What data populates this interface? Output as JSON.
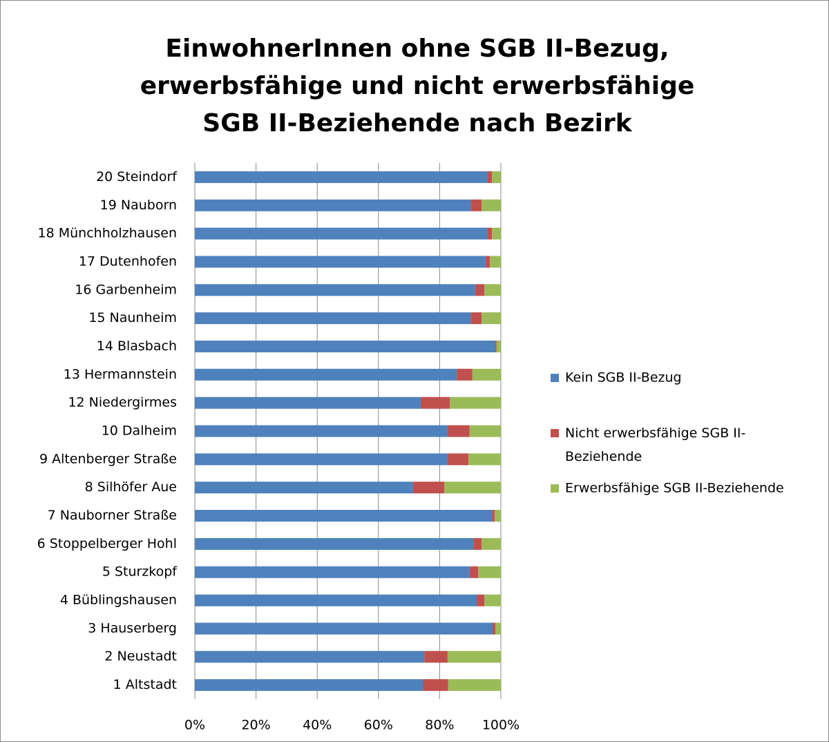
{
  "chart_data": {
    "type": "stacked_barh",
    "title": [
      "EinwohnerInnen ohne SGB II-Bezug,",
      "erwerbsfähige und nicht erwerbsfähige",
      "SGB II-Beziehende nach Bezirk"
    ],
    "categories": [
      "1 Altstadt",
      "2 Neustadt",
      "3 Hauserberg",
      "4 Büblingshausen",
      "5 Sturzkopf",
      "6 Stoppelberger Hohl",
      "7 Nauborner Straße",
      "8 Silhöfer Aue",
      "9 Altenberger Straße",
      "10 Dalheim",
      "12 Niedergirmes",
      "13 Hermannstein",
      "14 Blasbach",
      "15 Naunheim",
      "16 Garbenheim",
      "17 Dutenhofen",
      "18 Münchholzhausen",
      "19 Nauborn",
      "20 Steindorf"
    ],
    "series": [
      {
        "name": "Kein SGB II-Bezug",
        "color": "#4f81bd",
        "values": [
          74.5,
          75,
          97.3,
          92.1,
          89.8,
          91,
          97.1,
          71.3,
          82.6,
          82.6,
          73.8,
          85.6,
          98.2,
          90.1,
          91.6,
          95,
          95.5,
          90.1,
          95.7
        ]
      },
      {
        "name": "Nicht erwerbsfähige SGB II-Beziehende",
        "color": "#c0504d",
        "values": [
          8.3,
          7.6,
          0.9,
          2.5,
          2.8,
          2.7,
          0.9,
          10.2,
          6.8,
          7.2,
          9.5,
          5.1,
          0.4,
          3.6,
          3,
          1.4,
          1.6,
          3.6,
          1.4
        ]
      },
      {
        "name": "Erwerbsfähige SGB II-Beziehende",
        "color": "#9bbb59",
        "values": [
          17.2,
          17.4,
          1.8,
          5.4,
          7.4,
          6.3,
          2,
          18.5,
          10.6,
          10.2,
          16.7,
          9.3,
          1.4,
          6.3,
          5.4,
          3.6,
          2.9,
          6.3,
          2.9
        ]
      }
    ],
    "xlim": [
      0,
      100
    ],
    "xticks": [
      {
        "value": 0,
        "label": "0%"
      },
      {
        "value": 20,
        "label": "20%"
      },
      {
        "value": 40,
        "label": "40%"
      },
      {
        "value": 60,
        "label": "60%"
      },
      {
        "value": 80,
        "label": "80%"
      },
      {
        "value": 100,
        "label": "100%"
      }
    ],
    "grid": true,
    "legend": "right"
  }
}
